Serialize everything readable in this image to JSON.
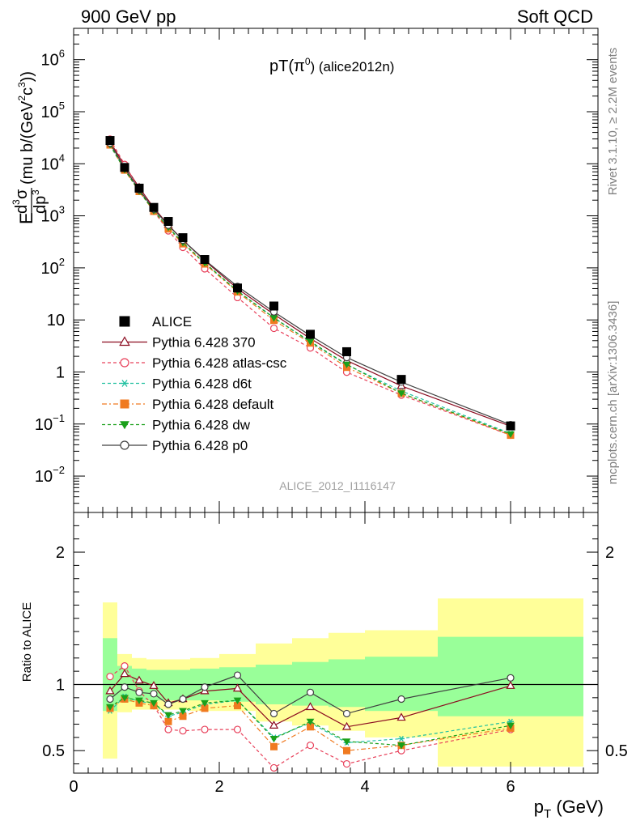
{
  "header": {
    "left": "900 GeV pp",
    "right": "Soft QCD"
  },
  "side": {
    "rivet": "Rivet 3.1.10, ≥ 2.2M events",
    "mcplots": "mcplots.cern.ch [arXiv:1306.3436]"
  },
  "chart_data": [
    {
      "type": "scatter",
      "panel": "main",
      "title": "pT(π⁰) (alice2012n)",
      "title_main": "pT(π",
      "title_sup": "0",
      "title_tail": ") (alice2012n)",
      "ylabel": "E d³σ/dp³ (mu b/(GeV²c³))",
      "ylabel_parts": [
        "E",
        "d",
        "3",
        "σ",
        "dp",
        "3",
        "(mu b/(GeV",
        "2",
        "c",
        "3",
        "))"
      ],
      "yscale": "log",
      "ylim": [
        0.002,
        4000000
      ],
      "xlim": [
        0,
        7.2
      ],
      "y_ticks": [
        {
          "value": 0.01,
          "base": "10",
          "exp": "−2"
        },
        {
          "value": 0.1,
          "base": "10",
          "exp": "−1"
        },
        {
          "value": 1,
          "base": "1",
          "exp": ""
        },
        {
          "value": 10,
          "base": "10",
          "exp": ""
        },
        {
          "value": 100,
          "base": "10",
          "exp": "2"
        },
        {
          "value": 1000,
          "base": "10",
          "exp": "3"
        },
        {
          "value": 10000,
          "base": "10",
          "exp": "4"
        },
        {
          "value": 100000,
          "base": "10",
          "exp": "5"
        },
        {
          "value": 1000000,
          "base": "10",
          "exp": "6"
        }
      ],
      "watermark": "ALICE_2012_I1116147",
      "legend_position": "middle-left",
      "x": [
        0.5,
        0.7,
        0.9,
        1.1,
        1.3,
        1.5,
        1.8,
        2.25,
        2.75,
        3.25,
        3.75,
        4.5,
        6.0
      ],
      "data": {
        "name": "ALICE",
        "values": [
          28000,
          8500,
          3400,
          1450,
          780,
          380,
          145,
          41,
          18.5,
          5.3,
          2.45,
          0.72,
          0.092
        ]
      },
      "series": [
        {
          "name": "Pythia 6.428 370",
          "color": "#8b0a1f",
          "dash": "",
          "marker": "triangle-open",
          "values": [
            26600,
            9200,
            3500,
            1430,
            670,
            340,
            138,
            40,
            12.8,
            4.4,
            1.66,
            0.54,
            0.091
          ]
        },
        {
          "name": "Pythia 6.428 atlas-csc",
          "color": "#e8405a",
          "dash": "4,3",
          "marker": "circle-open",
          "values": [
            29700,
            9700,
            3220,
            1220,
            515,
            248,
            96,
            27,
            6.9,
            2.9,
            0.99,
            0.36,
            0.061
          ]
        },
        {
          "name": "Pythia 6.428 d6t",
          "color": "#20c0a0",
          "dash": "4,3",
          "marker": "asterisk",
          "values": [
            22400,
            7700,
            2960,
            1250,
            590,
            300,
            123,
            36,
            11.1,
            3.75,
            1.38,
            0.43,
            0.066
          ]
        },
        {
          "name": "Pythia 6.428 default",
          "color": "#f07a20",
          "dash": "6,3,2,3",
          "marker": "square",
          "values": [
            23000,
            7550,
            2940,
            1220,
            560,
            290,
            119,
            34.5,
            9.8,
            3.6,
            1.23,
            0.39,
            0.061
          ]
        },
        {
          "name": "Pythia 6.428 dw",
          "color": "#1aa01a",
          "dash": "4,3",
          "marker": "triangle-down",
          "values": [
            23300,
            7700,
            2990,
            1250,
            600,
            305,
            125,
            36,
            10.9,
            3.85,
            1.4,
            0.39,
            0.064
          ]
        },
        {
          "name": "Pythia 6.428 p0",
          "color": "#404040",
          "dash": "",
          "marker": "circle-open",
          "values": [
            24900,
            8300,
            3180,
            1340,
            660,
            340,
            142,
            44,
            14.3,
            5.0,
            1.9,
            0.64,
            0.097
          ]
        }
      ]
    },
    {
      "type": "line",
      "panel": "ratio",
      "ylabel": "Ratio to ALICE",
      "xlabel": "p",
      "xlabel_sub": "T",
      "xlabel_tail": " (GeV)",
      "ylim": [
        0.33,
        2.3
      ],
      "xlim": [
        0,
        7.2
      ],
      "x_ticks": [
        0,
        2,
        4,
        6
      ],
      "y_ticks_left": [
        0.5,
        1,
        2
      ],
      "y_ticks_right": [
        0.5,
        2
      ],
      "reference": 1,
      "bins": [
        {
          "x0": 0.4,
          "x1": 0.6,
          "yellow": [
            0.44,
            1.62
          ],
          "green": [
            0.8,
            1.35
          ]
        },
        {
          "x0": 0.6,
          "x1": 0.8,
          "yellow": [
            0.79,
            1.23
          ],
          "green": [
            0.87,
            1.14
          ]
        },
        {
          "x0": 0.8,
          "x1": 1.0,
          "yellow": [
            0.81,
            1.2
          ],
          "green": [
            0.88,
            1.12
          ]
        },
        {
          "x0": 1.0,
          "x1": 1.2,
          "yellow": [
            0.81,
            1.19
          ],
          "green": [
            0.88,
            1.11
          ]
        },
        {
          "x0": 1.2,
          "x1": 1.4,
          "yellow": [
            0.81,
            1.19
          ],
          "green": [
            0.88,
            1.11
          ]
        },
        {
          "x0": 1.4,
          "x1": 1.6,
          "yellow": [
            0.81,
            1.19
          ],
          "green": [
            0.88,
            1.11
          ]
        },
        {
          "x0": 1.6,
          "x1": 2.0,
          "yellow": [
            0.8,
            1.2
          ],
          "green": [
            0.88,
            1.12
          ]
        },
        {
          "x0": 2.0,
          "x1": 2.5,
          "yellow": [
            0.8,
            1.23
          ],
          "green": [
            0.87,
            1.13
          ]
        },
        {
          "x0": 2.5,
          "x1": 3.0,
          "yellow": [
            0.72,
            1.31
          ],
          "green": [
            0.85,
            1.15
          ]
        },
        {
          "x0": 3.0,
          "x1": 3.5,
          "yellow": [
            0.69,
            1.35
          ],
          "green": [
            0.84,
            1.17
          ]
        },
        {
          "x0": 3.5,
          "x1": 4.0,
          "yellow": [
            0.65,
            1.39
          ],
          "green": [
            0.83,
            1.19
          ]
        },
        {
          "x0": 4.0,
          "x1": 5.0,
          "yellow": [
            0.6,
            1.41
          ],
          "green": [
            0.8,
            1.21
          ]
        },
        {
          "x0": 5.0,
          "x1": 7.0,
          "yellow": [
            0.38,
            1.65
          ],
          "green": [
            0.76,
            1.36
          ]
        }
      ],
      "series": [
        {
          "name": "Pythia 6.428 370",
          "color": "#8b0a1f",
          "dash": "",
          "marker": "triangle-open",
          "values": [
            0.95,
            1.08,
            1.03,
            0.99,
            0.86,
            0.89,
            0.95,
            0.97,
            0.69,
            0.83,
            0.68,
            0.75,
            0.99
          ]
        },
        {
          "name": "Pythia 6.428 atlas-csc",
          "color": "#e8405a",
          "dash": "4,3",
          "marker": "circle-open",
          "values": [
            1.06,
            1.14,
            0.95,
            0.84,
            0.66,
            0.65,
            0.66,
            0.66,
            0.37,
            0.54,
            0.4,
            0.5,
            0.66
          ]
        },
        {
          "name": "Pythia 6.428 d6t",
          "color": "#20c0a0",
          "dash": "4,3",
          "marker": "asterisk",
          "values": [
            0.8,
            0.91,
            0.87,
            0.86,
            0.76,
            0.79,
            0.85,
            0.88,
            0.6,
            0.71,
            0.56,
            0.59,
            0.72
          ]
        },
        {
          "name": "Pythia 6.428 default",
          "color": "#f07a20",
          "dash": "6,3,2,3",
          "marker": "square",
          "values": [
            0.82,
            0.89,
            0.86,
            0.84,
            0.72,
            0.76,
            0.82,
            0.84,
            0.53,
            0.68,
            0.5,
            0.54,
            0.67
          ]
        },
        {
          "name": "Pythia 6.428 dw",
          "color": "#1aa01a",
          "dash": "4,3",
          "marker": "triangle-down",
          "values": [
            0.83,
            0.9,
            0.88,
            0.86,
            0.77,
            0.8,
            0.86,
            0.88,
            0.59,
            0.72,
            0.57,
            0.54,
            0.69
          ]
        },
        {
          "name": "Pythia 6.428 p0",
          "color": "#404040",
          "dash": "",
          "marker": "circle-open",
          "values": [
            0.89,
            0.98,
            0.94,
            0.93,
            0.85,
            0.89,
            0.98,
            1.07,
            0.78,
            0.94,
            0.78,
            0.89,
            1.05
          ]
        }
      ]
    }
  ]
}
